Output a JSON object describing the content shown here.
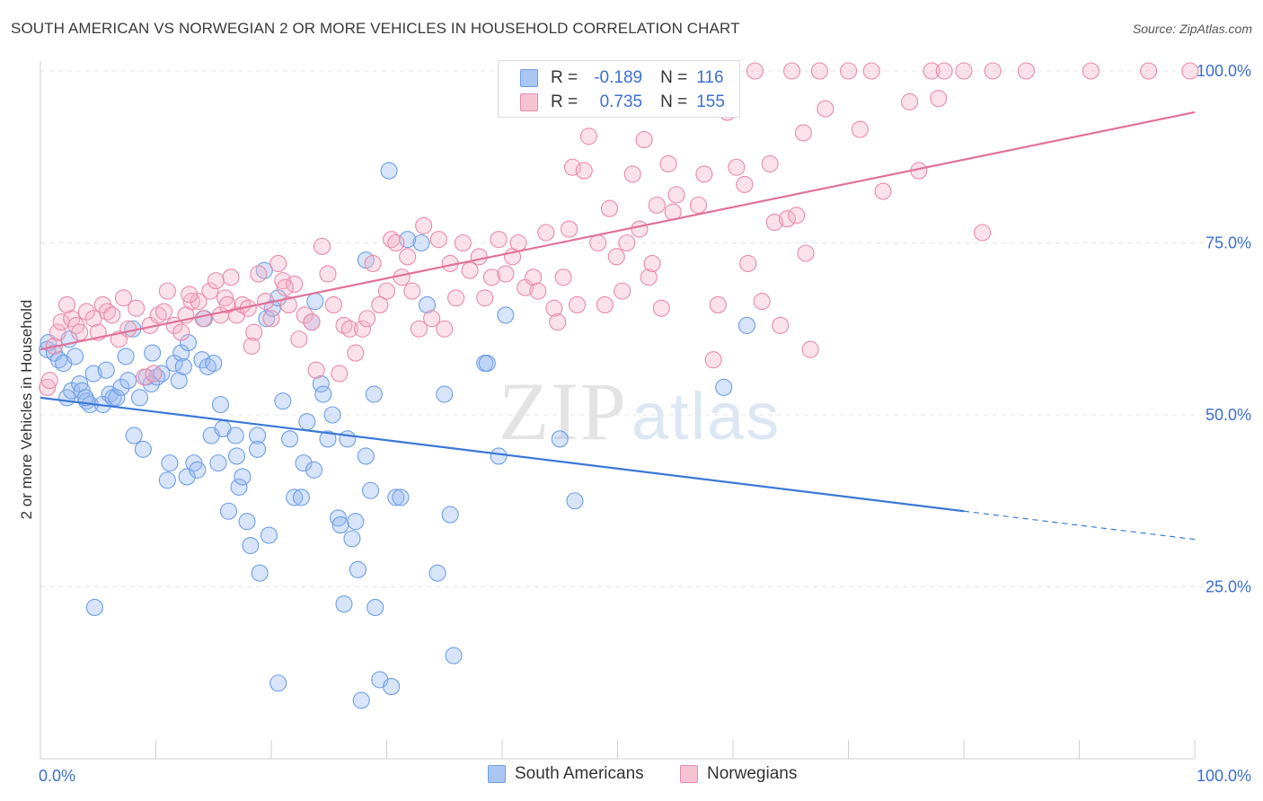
{
  "title": "SOUTH AMERICAN VS NORWEGIAN 2 OR MORE VEHICLES IN HOUSEHOLD CORRELATION CHART",
  "source": "Source: ZipAtlas.com",
  "watermark": {
    "zip": "ZIP",
    "atlas": "atlas"
  },
  "legend": {
    "rows": [
      {
        "r_label": "R =",
        "r_value": "-0.189",
        "n_label": "N =",
        "n_value": "116",
        "color": "#6e9ee6",
        "fill": "#aac6f2"
      },
      {
        "r_label": "R =",
        "r_value": "0.735",
        "n_label": "N =",
        "n_value": "155",
        "color": "#e88aa8",
        "fill": "#f6c3d3"
      }
    ]
  },
  "bottom_legend": [
    {
      "label": "South Americans",
      "color": "#6e9ee6",
      "fill": "#aac6f2"
    },
    {
      "label": "Norwegians",
      "color": "#e88aa8",
      "fill": "#f6c3d3"
    }
  ],
  "chart_data": {
    "type": "scatter",
    "title": "SOUTH AMERICAN VS NORWEGIAN 2 OR MORE VEHICLES IN HOUSEHOLD CORRELATION CHART",
    "xlabel": "",
    "ylabel": "2 or more Vehicles in Household",
    "x_tick_labels": [
      "0.0%",
      "100.0%"
    ],
    "y_tick_labels": [
      "25.0%",
      "50.0%",
      "75.0%",
      "100.0%"
    ],
    "xlim": [
      0,
      100
    ],
    "ylim": [
      0,
      100
    ],
    "grid": true,
    "colors": {
      "south_americans": "#3b78d8",
      "norwegians": "#e0729a"
    },
    "series": [
      {
        "name": "South Americans",
        "trend": {
          "x": [
            0,
            80
          ],
          "y": [
            52.5,
            36.0
          ],
          "dashed_to": [
            100,
            31.9
          ]
        },
        "points": [
          [
            0.6,
            59.5
          ],
          [
            0.7,
            60.5
          ],
          [
            1.2,
            59
          ],
          [
            1.6,
            58
          ],
          [
            2.0,
            57.5
          ],
          [
            2.3,
            52.5
          ],
          [
            2.7,
            53.5
          ],
          [
            3.0,
            58.5
          ],
          [
            3.4,
            54.5
          ],
          [
            3.6,
            53.5
          ],
          [
            4.0,
            52
          ],
          [
            4.3,
            51.5
          ],
          [
            4.6,
            56
          ],
          [
            4.7,
            22
          ],
          [
            5.4,
            51.5
          ],
          [
            5.7,
            56.5
          ],
          [
            6.0,
            53
          ],
          [
            6.3,
            52.5
          ],
          [
            6.6,
            52.5
          ],
          [
            7.0,
            54
          ],
          [
            7.4,
            58.5
          ],
          [
            7.6,
            55
          ],
          [
            8.0,
            62.5
          ],
          [
            8.1,
            47
          ],
          [
            8.6,
            52.5
          ],
          [
            8.9,
            45
          ],
          [
            9.2,
            55.5
          ],
          [
            9.6,
            54.5
          ],
          [
            9.7,
            59
          ],
          [
            10.1,
            55.5
          ],
          [
            10.5,
            56
          ],
          [
            11.0,
            40.5
          ],
          [
            11.2,
            43
          ],
          [
            11.6,
            57.5
          ],
          [
            12.0,
            55
          ],
          [
            12.2,
            59
          ],
          [
            12.4,
            57
          ],
          [
            12.7,
            41
          ],
          [
            12.8,
            60.5
          ],
          [
            13.3,
            43
          ],
          [
            13.6,
            42
          ],
          [
            14.0,
            58
          ],
          [
            14.2,
            64
          ],
          [
            14.5,
            57
          ],
          [
            14.8,
            47
          ],
          [
            15.0,
            57.5
          ],
          [
            15.4,
            43
          ],
          [
            15.6,
            51.5
          ],
          [
            15.8,
            48
          ],
          [
            16.3,
            36
          ],
          [
            16.9,
            47
          ],
          [
            17.0,
            44
          ],
          [
            17.2,
            39.5
          ],
          [
            17.5,
            41
          ],
          [
            17.9,
            34.5
          ],
          [
            18.2,
            31
          ],
          [
            18.8,
            47
          ],
          [
            18.8,
            45
          ],
          [
            19.0,
            27
          ],
          [
            19.4,
            71
          ],
          [
            19.6,
            64
          ],
          [
            19.8,
            32.5
          ],
          [
            20.1,
            65.5
          ],
          [
            20.6,
            11
          ],
          [
            20.6,
            67
          ],
          [
            21.0,
            52
          ],
          [
            21.6,
            46.5
          ],
          [
            22.0,
            38
          ],
          [
            22.6,
            38
          ],
          [
            22.8,
            43
          ],
          [
            23.1,
            49
          ],
          [
            23.5,
            63.5
          ],
          [
            23.7,
            42
          ],
          [
            23.8,
            66.5
          ],
          [
            24.3,
            54.5
          ],
          [
            24.5,
            53
          ],
          [
            24.9,
            46.5
          ],
          [
            25.3,
            50
          ],
          [
            25.8,
            35
          ],
          [
            26.0,
            34
          ],
          [
            26.3,
            22.5
          ],
          [
            26.6,
            46.5
          ],
          [
            27.0,
            32
          ],
          [
            27.3,
            34.5
          ],
          [
            27.5,
            27.5
          ],
          [
            27.8,
            8.5
          ],
          [
            28.2,
            44
          ],
          [
            28.2,
            72.5
          ],
          [
            28.6,
            39
          ],
          [
            28.9,
            53
          ],
          [
            29.0,
            22
          ],
          [
            29.4,
            11.5
          ],
          [
            30.4,
            10.5
          ],
          [
            30.8,
            38
          ],
          [
            31.2,
            38
          ],
          [
            31.8,
            75.5
          ],
          [
            33.0,
            75
          ],
          [
            33.5,
            66
          ],
          [
            34.4,
            27
          ],
          [
            35.0,
            53
          ],
          [
            35.5,
            35.5
          ],
          [
            35.8,
            15
          ],
          [
            38.5,
            57.5
          ],
          [
            38.7,
            57.5
          ],
          [
            39.7,
            44
          ],
          [
            40.3,
            64.5
          ],
          [
            45.0,
            46.5
          ],
          [
            46.3,
            37.5
          ],
          [
            59.2,
            54
          ],
          [
            61.2,
            63
          ],
          [
            30.2,
            85.5
          ],
          [
            2.5,
            61
          ],
          [
            3.9,
            52.5
          ]
        ]
      },
      {
        "name": "Norwegians",
        "trend": {
          "x": [
            0,
            100
          ],
          "y": [
            59.5,
            94.0
          ]
        },
        "points": [
          [
            0.6,
            54
          ],
          [
            1.2,
            60
          ],
          [
            1.5,
            62
          ],
          [
            1.8,
            63.5
          ],
          [
            2.3,
            66
          ],
          [
            2.7,
            64
          ],
          [
            3.1,
            63
          ],
          [
            3.4,
            62
          ],
          [
            4.0,
            65
          ],
          [
            4.6,
            64
          ],
          [
            5.0,
            62
          ],
          [
            5.4,
            66
          ],
          [
            5.8,
            65
          ],
          [
            6.2,
            64.5
          ],
          [
            6.8,
            61
          ],
          [
            7.2,
            67
          ],
          [
            7.6,
            62.5
          ],
          [
            8.3,
            65.5
          ],
          [
            9.0,
            55.5
          ],
          [
            9.5,
            63
          ],
          [
            10.2,
            64.5
          ],
          [
            10.7,
            65
          ],
          [
            11.0,
            68
          ],
          [
            11.6,
            63
          ],
          [
            12.2,
            62
          ],
          [
            12.6,
            64.5
          ],
          [
            13.1,
            66.5
          ],
          [
            13.7,
            66.5
          ],
          [
            14.1,
            64
          ],
          [
            14.7,
            68
          ],
          [
            15.2,
            69.5
          ],
          [
            15.6,
            64.5
          ],
          [
            16.0,
            67
          ],
          [
            16.5,
            70
          ],
          [
            17.0,
            64.5
          ],
          [
            17.5,
            66
          ],
          [
            18.0,
            65.5
          ],
          [
            18.5,
            62
          ],
          [
            18.9,
            70.5
          ],
          [
            19.5,
            66.5
          ],
          [
            20.0,
            64
          ],
          [
            20.6,
            72
          ],
          [
            21.0,
            69.5
          ],
          [
            21.5,
            66
          ],
          [
            22.0,
            69
          ],
          [
            22.4,
            61
          ],
          [
            22.9,
            64.5
          ],
          [
            23.5,
            63.5
          ],
          [
            23.9,
            56.5
          ],
          [
            24.4,
            74.5
          ],
          [
            24.9,
            70.5
          ],
          [
            25.4,
            66
          ],
          [
            25.9,
            56
          ],
          [
            26.3,
            63
          ],
          [
            26.8,
            62.5
          ],
          [
            27.3,
            59
          ],
          [
            27.9,
            62.5
          ],
          [
            28.3,
            64
          ],
          [
            28.8,
            72
          ],
          [
            29.4,
            66
          ],
          [
            30.0,
            68
          ],
          [
            30.4,
            75.5
          ],
          [
            30.8,
            75
          ],
          [
            31.3,
            70
          ],
          [
            31.8,
            73
          ],
          [
            32.2,
            68
          ],
          [
            32.8,
            62.5
          ],
          [
            33.2,
            77.5
          ],
          [
            33.9,
            64
          ],
          [
            34.5,
            75.5
          ],
          [
            35.0,
            62.5
          ],
          [
            35.5,
            72
          ],
          [
            36.0,
            67
          ],
          [
            36.6,
            75
          ],
          [
            37.2,
            71
          ],
          [
            38.0,
            73
          ],
          [
            38.5,
            67
          ],
          [
            39.1,
            70
          ],
          [
            39.7,
            75.5
          ],
          [
            40.3,
            70.5
          ],
          [
            40.9,
            73
          ],
          [
            41.4,
            75
          ],
          [
            42.0,
            68.5
          ],
          [
            42.7,
            70
          ],
          [
            43.1,
            68
          ],
          [
            43.8,
            76.5
          ],
          [
            44.5,
            65.5
          ],
          [
            44.8,
            63.5
          ],
          [
            45.3,
            70
          ],
          [
            45.8,
            77
          ],
          [
            46.1,
            86
          ],
          [
            46.5,
            66
          ],
          [
            47.1,
            85.5
          ],
          [
            47.5,
            90.5
          ],
          [
            48.3,
            75
          ],
          [
            48.9,
            66
          ],
          [
            49.3,
            80
          ],
          [
            49.9,
            73
          ],
          [
            50.4,
            68
          ],
          [
            50.8,
            75
          ],
          [
            51.3,
            85
          ],
          [
            51.9,
            77
          ],
          [
            52.3,
            90
          ],
          [
            52.7,
            70
          ],
          [
            53.0,
            72
          ],
          [
            53.4,
            80.5
          ],
          [
            53.8,
            65.5
          ],
          [
            54.4,
            86.5
          ],
          [
            54.8,
            79.5
          ],
          [
            55.1,
            82
          ],
          [
            56.0,
            100
          ],
          [
            57.0,
            80.5
          ],
          [
            57.5,
            85
          ],
          [
            58.3,
            58
          ],
          [
            58.7,
            66
          ],
          [
            59.0,
            100
          ],
          [
            59.5,
            94
          ],
          [
            60.3,
            86
          ],
          [
            61.0,
            83.5
          ],
          [
            61.3,
            72
          ],
          [
            61.9,
            100
          ],
          [
            62.5,
            66.5
          ],
          [
            63.2,
            86.5
          ],
          [
            63.6,
            78
          ],
          [
            64.1,
            63
          ],
          [
            64.7,
            78.5
          ],
          [
            65.1,
            100
          ],
          [
            65.5,
            79
          ],
          [
            66.1,
            91
          ],
          [
            66.3,
            73.5
          ],
          [
            66.7,
            59.5
          ],
          [
            67.5,
            100
          ],
          [
            68.0,
            94.5
          ],
          [
            70.0,
            100
          ],
          [
            71.0,
            91.5
          ],
          [
            72.0,
            100
          ],
          [
            73.0,
            82.5
          ],
          [
            75.3,
            95.5
          ],
          [
            76.1,
            85.5
          ],
          [
            77.2,
            100
          ],
          [
            77.8,
            96
          ],
          [
            78.3,
            100
          ],
          [
            80.0,
            100
          ],
          [
            81.6,
            76.5
          ],
          [
            82.5,
            100
          ],
          [
            85.4,
            100
          ],
          [
            91.0,
            100
          ],
          [
            96.0,
            100
          ],
          [
            99.6,
            100
          ],
          [
            0.8,
            55
          ],
          [
            9.8,
            56
          ],
          [
            12.9,
            67.5
          ],
          [
            21.2,
            68.5
          ],
          [
            16.2,
            66
          ],
          [
            18.3,
            60
          ]
        ]
      }
    ]
  }
}
